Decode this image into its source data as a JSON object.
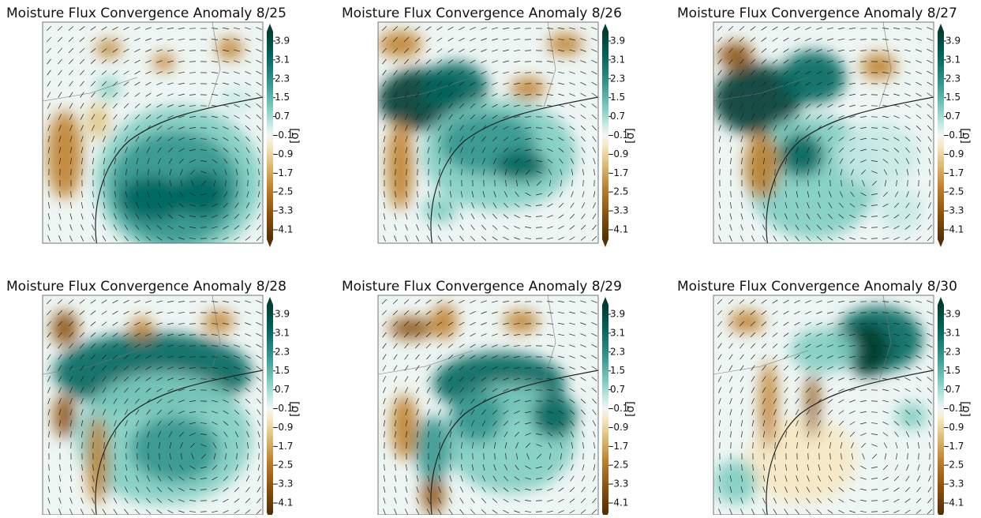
{
  "panels": [
    {
      "title": "Moisture Flux Convergence Anomaly 8/25"
    },
    {
      "title": "Moisture Flux Convergence Anomaly 8/26"
    },
    {
      "title": "Moisture Flux Convergence Anomaly 8/27"
    },
    {
      "title": "Moisture Flux Convergence Anomaly 8/28"
    },
    {
      "title": "Moisture Flux Convergence Anomaly 8/29"
    },
    {
      "title": "Moisture Flux Convergence Anomaly 8/30"
    }
  ],
  "colorbar": {
    "label": "[σ]",
    "lim": [
      -4.5,
      4.3
    ],
    "ticks": [
      3.9,
      3.1,
      2.3,
      1.5,
      0.7,
      -0.1,
      -0.9,
      -1.7,
      -2.5,
      -3.3,
      -4.1
    ]
  }
}
